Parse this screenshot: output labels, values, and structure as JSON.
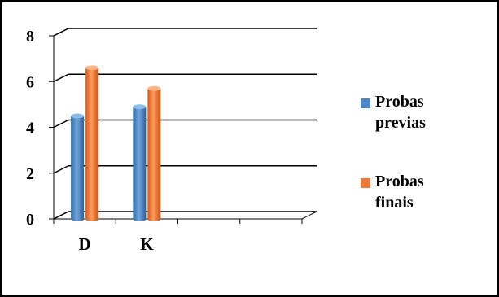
{
  "chart_data": {
    "type": "bar",
    "categories": [
      "D",
      "K"
    ],
    "series": [
      {
        "name": "Probas previas",
        "values": [
          4.5,
          4.9
        ]
      },
      {
        "name": "Probas finais",
        "values": [
          6.6,
          5.7
        ]
      }
    ],
    "ylim": [
      0,
      8
    ],
    "yticks": [
      0,
      2,
      4,
      6,
      8
    ],
    "grid": true,
    "legend_position": "right",
    "colors": [
      "#4A86C8",
      "#F07A35"
    ]
  }
}
